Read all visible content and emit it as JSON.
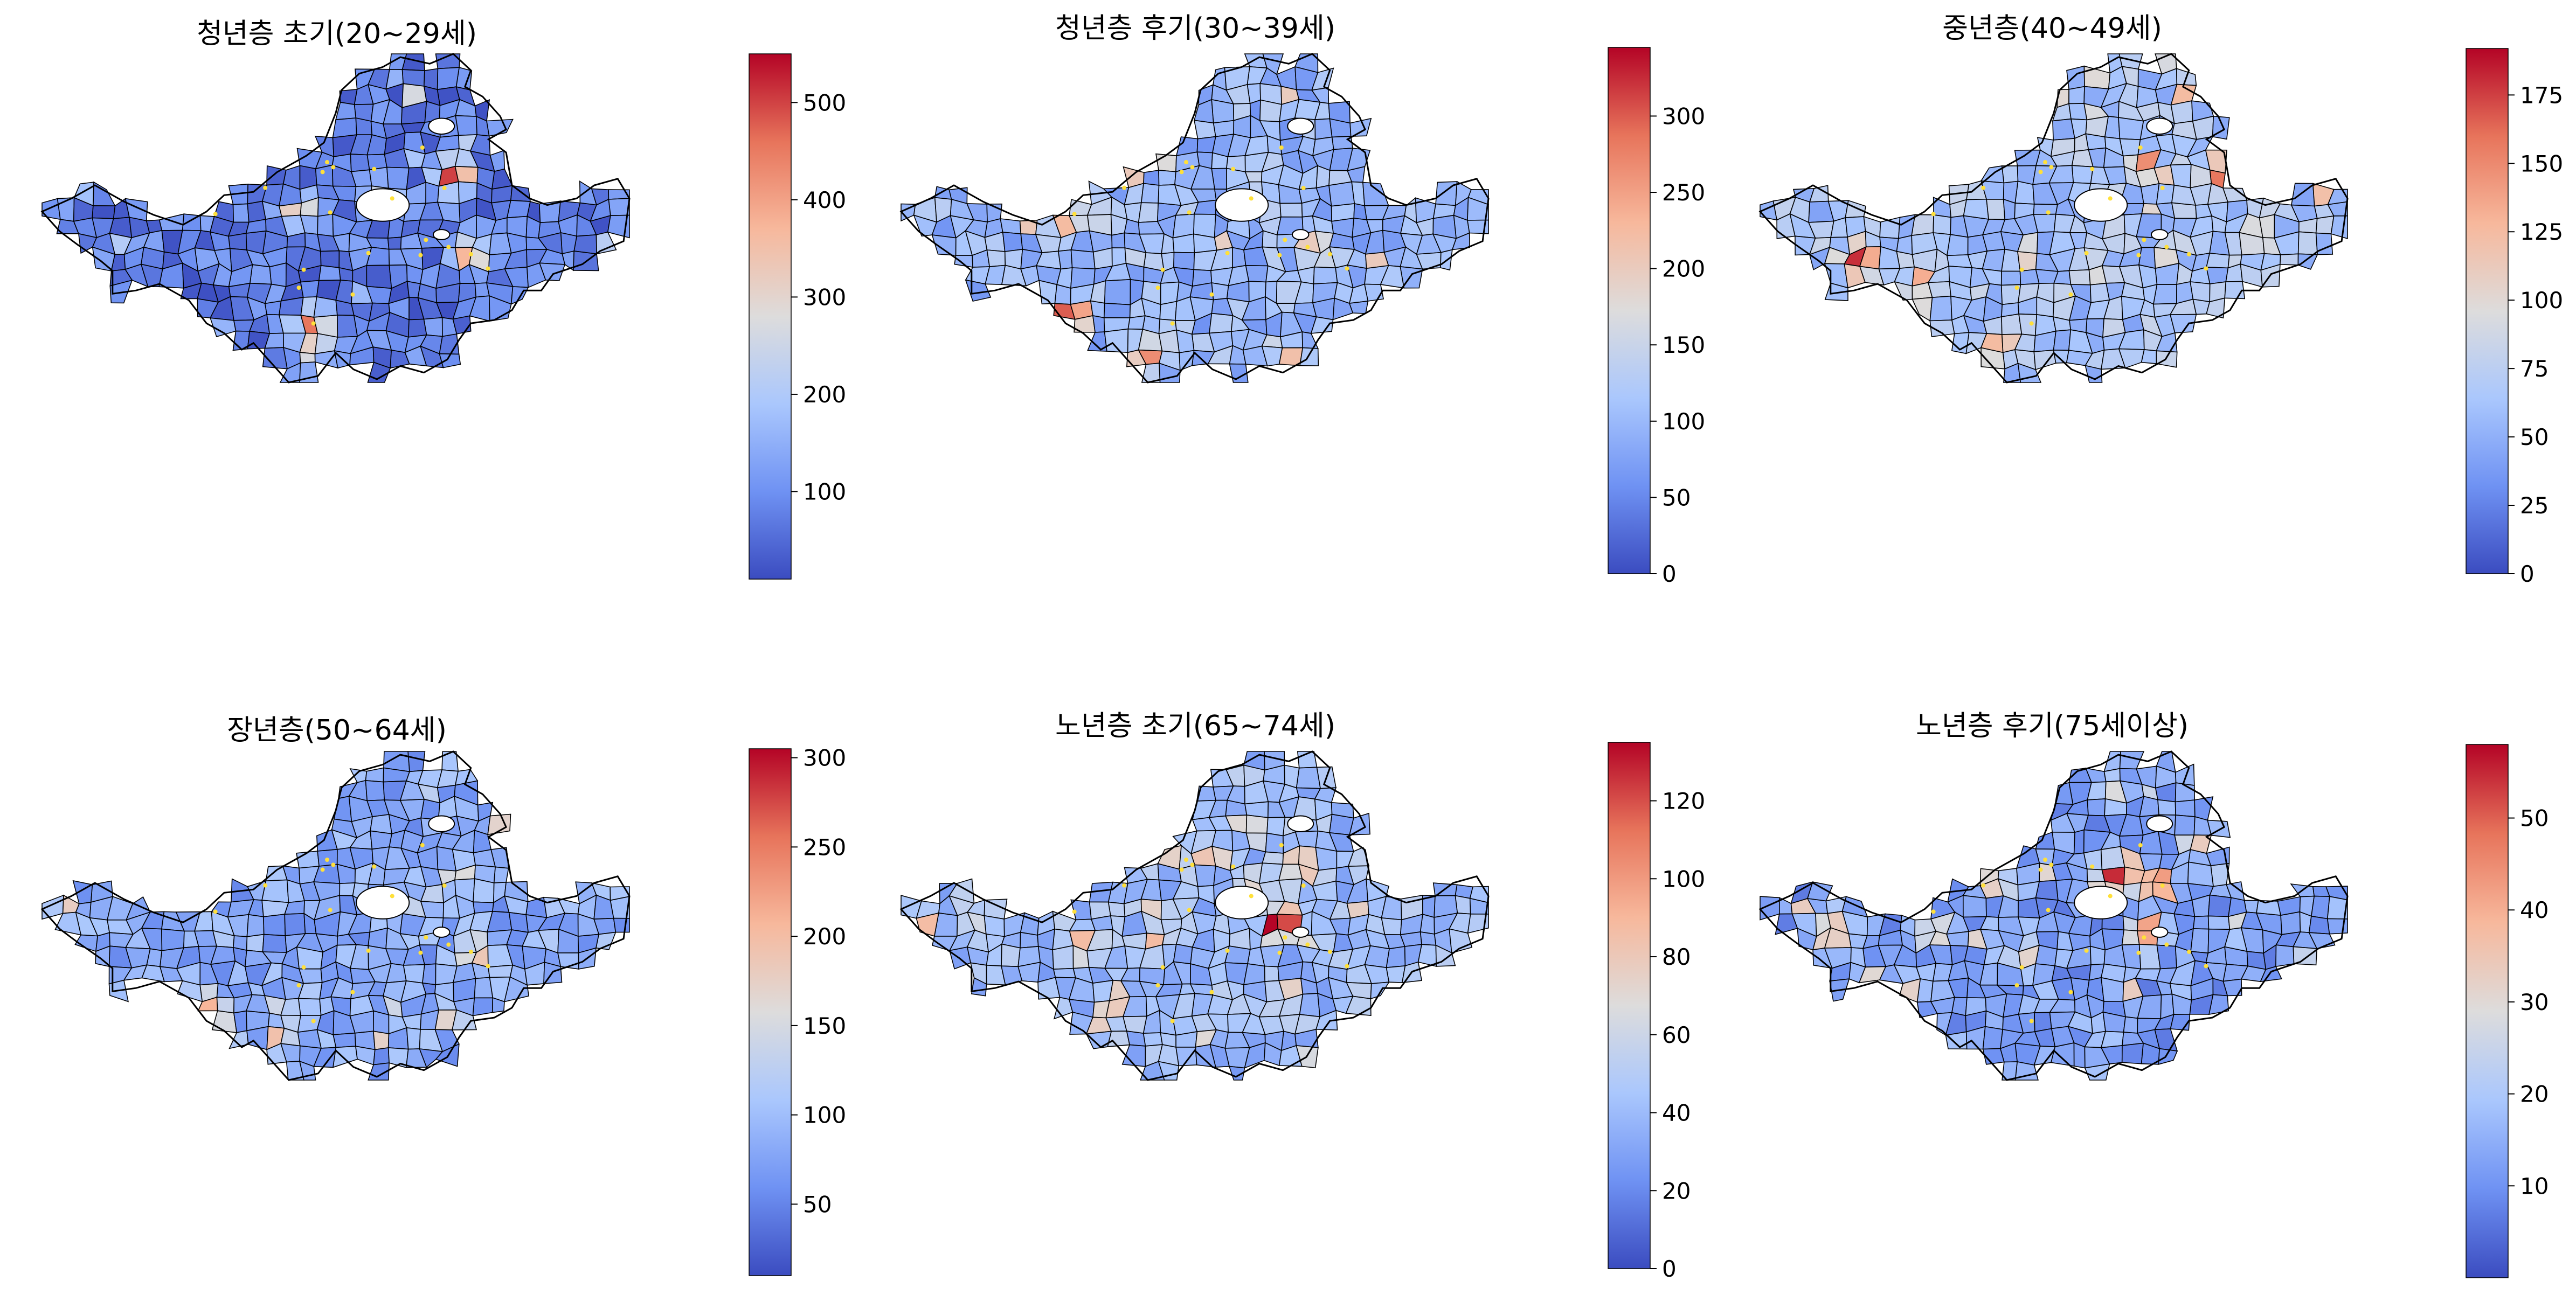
{
  "figure": {
    "colormap": "coolwarm",
    "colormap_stops": [
      "#3b4cc0",
      "#6f92f3",
      "#aac7fd",
      "#dddcdc",
      "#f7b89c",
      "#e7745b",
      "#b40426"
    ],
    "boundary_color": "#000000",
    "marker_color": "#ffe03a"
  },
  "chart_data": [
    {
      "type": "choropleth",
      "title": "청년층 초기(20~29세)",
      "colorbar": {
        "min": 10,
        "max": 550,
        "ticks": [
          100,
          200,
          300,
          400,
          500
        ]
      },
      "value_distribution": "mostly low (deep blue); a few high-value districts up to ~550",
      "base_level": 0.12,
      "hotspots": [
        {
          "u": 0.7,
          "v": 0.37,
          "level": 1.0
        },
        {
          "u": 0.44,
          "v": 0.48,
          "level": 0.65
        },
        {
          "u": 0.73,
          "v": 0.61,
          "level": 0.78
        },
        {
          "u": 0.46,
          "v": 0.9,
          "level": 0.58
        },
        {
          "u": 0.46,
          "v": 0.82,
          "level": 0.85
        },
        {
          "u": 0.58,
          "v": 0.42,
          "level": 0.45
        }
      ]
    },
    {
      "type": "choropleth",
      "title": "청년층 후기(30~39세)",
      "colorbar": {
        "min": 0,
        "max": 345,
        "ticks": [
          0,
          50,
          100,
          150,
          200,
          250,
          300
        ]
      },
      "value_distribution": "mostly 50–150 (blue); hotspot in south-west up to ~345",
      "base_level": 0.28,
      "hotspots": [
        {
          "u": 0.29,
          "v": 0.79,
          "level": 1.0
        },
        {
          "u": 0.42,
          "v": 0.92,
          "level": 0.8
        },
        {
          "u": 0.7,
          "v": 0.58,
          "level": 0.6
        },
        {
          "u": 0.32,
          "v": 0.5,
          "level": 0.55
        },
        {
          "u": 0.6,
          "v": 0.4,
          "level": 0.45
        }
      ]
    },
    {
      "type": "choropleth",
      "title": "중년층(40~49세)",
      "colorbar": {
        "min": 0,
        "max": 192,
        "ticks": [
          0,
          25,
          50,
          75,
          100,
          125,
          150,
          175
        ]
      },
      "value_distribution": "mostly 25–100; peaks in west and north-east up to ~192",
      "base_level": 0.33,
      "hotspots": [
        {
          "u": 0.17,
          "v": 0.63,
          "level": 1.0
        },
        {
          "u": 0.79,
          "v": 0.37,
          "level": 0.9
        },
        {
          "u": 0.41,
          "v": 0.88,
          "level": 0.72
        },
        {
          "u": 0.27,
          "v": 0.75,
          "level": 0.62
        },
        {
          "u": 0.85,
          "v": 0.55,
          "level": 0.55
        },
        {
          "u": 0.65,
          "v": 0.35,
          "level": 0.6
        }
      ]
    },
    {
      "type": "choropleth",
      "title": "장년층(50~64세)",
      "colorbar": {
        "min": 10,
        "max": 305,
        "ticks": [
          50,
          100,
          150,
          200,
          250,
          300
        ]
      },
      "value_distribution": "mostly 50–150; isolated peak in south-west up to ~305",
      "base_level": 0.25,
      "hotspots": [
        {
          "u": 0.28,
          "v": 0.82,
          "level": 1.0
        },
        {
          "u": 0.27,
          "v": 0.76,
          "level": 0.7
        },
        {
          "u": 0.71,
          "v": 0.38,
          "level": 0.55
        },
        {
          "u": 0.74,
          "v": 0.61,
          "level": 0.68
        },
        {
          "u": 0.42,
          "v": 0.85,
          "level": 0.45
        }
      ]
    },
    {
      "type": "choropleth",
      "title": "노년층 초기(65~74세)",
      "colorbar": {
        "min": 0,
        "max": 135,
        "ticks": [
          0,
          20,
          40,
          60,
          80,
          100,
          120
        ]
      },
      "value_distribution": "mostly 20–60; central peak up to ~135",
      "base_level": 0.3,
      "hotspots": [
        {
          "u": 0.65,
          "v": 0.52,
          "level": 1.0
        },
        {
          "u": 0.68,
          "v": 0.35,
          "level": 0.75
        },
        {
          "u": 0.31,
          "v": 0.58,
          "level": 0.65
        },
        {
          "u": 0.61,
          "v": 0.42,
          "level": 0.55
        },
        {
          "u": 0.45,
          "v": 0.55,
          "level": 0.45
        }
      ]
    },
    {
      "type": "choropleth",
      "title": "노년층 후기(75세이상)",
      "colorbar": {
        "min": 0,
        "max": 58,
        "ticks": [
          10,
          20,
          30,
          40,
          50
        ]
      },
      "value_distribution": "bimodal: north and central districts high (up to ~58), south-east low (~5–15)",
      "base_level": 0.22,
      "hotspots": [
        {
          "u": 0.61,
          "v": 0.38,
          "level": 1.0
        },
        {
          "u": 0.68,
          "v": 0.4,
          "level": 0.95
        },
        {
          "u": 0.66,
          "v": 0.55,
          "level": 0.88
        },
        {
          "u": 0.12,
          "v": 0.55,
          "level": 0.8
        },
        {
          "u": 0.6,
          "v": 0.12,
          "level": 0.5
        },
        {
          "u": 0.4,
          "v": 0.4,
          "level": 0.65
        },
        {
          "u": 0.3,
          "v": 0.55,
          "level": 0.6
        },
        {
          "u": 0.25,
          "v": 0.72,
          "level": 0.55
        },
        {
          "u": 0.45,
          "v": 0.62,
          "level": 0.55
        }
      ]
    }
  ]
}
